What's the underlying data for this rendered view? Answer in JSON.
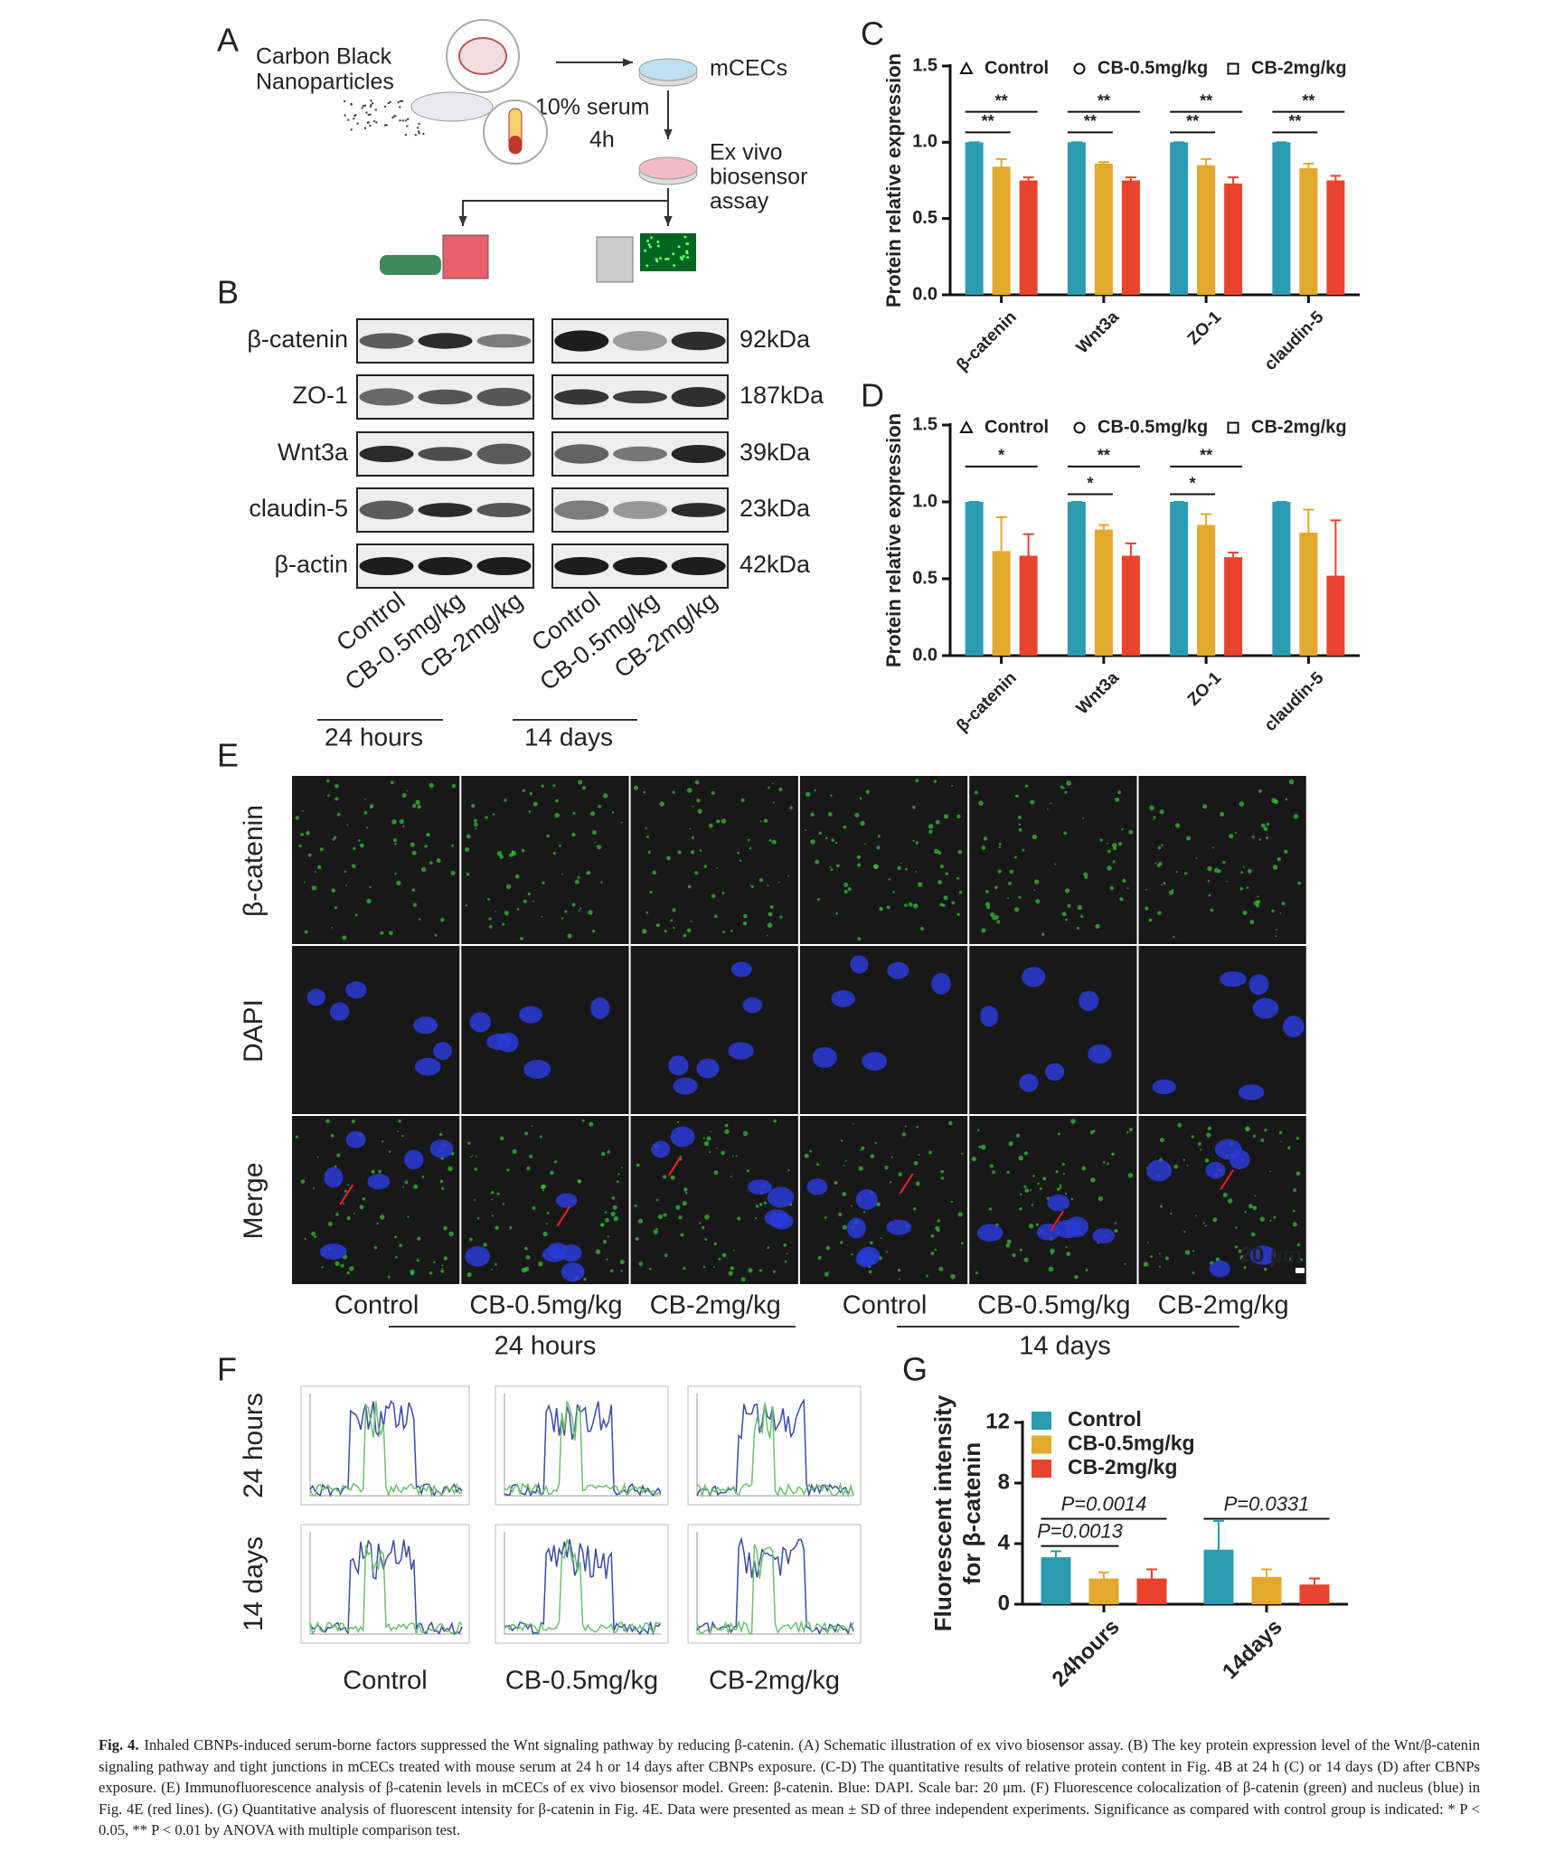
{
  "panel_a": {
    "label": "A",
    "source": [
      "Carbon Black",
      "Nanoparticles"
    ],
    "target": "mCECs",
    "treatment": [
      "10% serum",
      "4h"
    ],
    "assay": [
      "Ex vivo",
      "biosensor",
      "assay"
    ]
  },
  "panel_b": {
    "label": "B",
    "proteins": [
      "β-catenin",
      "ZO-1",
      "Wnt3a",
      "claudin-5",
      "β-actin"
    ],
    "weights": [
      "92kDa",
      "187kDa",
      "39kDa",
      "23kDa",
      "42kDa"
    ],
    "lanes": [
      [
        "Control",
        "CB-0.5mg/kg",
        "CB-2mg/kg"
      ],
      [
        "Control",
        "CB-0.5mg/kg",
        "CB-2mg/kg"
      ]
    ],
    "groups": [
      "24 hours",
      "14 days"
    ]
  },
  "panel_e": {
    "label": "E",
    "rows": [
      "β-catenin",
      "DAPI",
      "Merge"
    ],
    "columns": [
      "Control",
      "CB-0.5mg/kg",
      "CB-2mg/kg",
      "Control",
      "CB-0.5mg/kg",
      "CB-2mg/kg"
    ],
    "groups": [
      "24 hours",
      "14 days"
    ],
    "scale_bar": "20 µm"
  },
  "panel_f": {
    "label": "F",
    "rows": [
      "24 hours",
      "14 days"
    ],
    "columns": [
      "Control",
      "CB-0.5mg/kg",
      "CB-2mg/kg"
    ]
  },
  "chart_data": [
    {
      "type": "bar",
      "panel": "C",
      "ylabel": "Protein relative expression",
      "categories": [
        "β-catenin",
        "Wnt3a",
        "ZO-1",
        "claudin-5"
      ],
      "ylim": [
        0,
        1.5
      ],
      "yticks": [
        {
          "value": 0,
          "label": "0.0"
        },
        {
          "value": 0.5,
          "label": "0.5"
        },
        {
          "value": 1,
          "label": "1.0"
        },
        {
          "value": 1.5,
          "label": "1.5"
        }
      ],
      "grid": false,
      "legend": "top",
      "series": [
        {
          "name": "Control",
          "color": "#2a9bb0",
          "marker": "triangle",
          "values": [
            1,
            1,
            1,
            1
          ],
          "errors": [
            0,
            0,
            0,
            0
          ]
        },
        {
          "name": "CB-0.5mg/kg",
          "color": "#e3a82e",
          "marker": "circle",
          "values": [
            0.84,
            0.86,
            0.85,
            0.83
          ],
          "errors": [
            0.05,
            0.01,
            0.04,
            0.03
          ],
          "significance": [
            "**",
            "**",
            "**",
            "**"
          ]
        },
        {
          "name": "CB-2mg/kg",
          "color": "#e8432c",
          "marker": "square",
          "values": [
            0.75,
            0.75,
            0.73,
            0.75
          ],
          "errors": [
            0.02,
            0.02,
            0.04,
            0.03
          ],
          "significance": [
            "**",
            "**",
            "**",
            "**"
          ]
        }
      ]
    },
    {
      "type": "bar",
      "panel": "D",
      "ylabel": "Protein relative expression",
      "categories": [
        "β-catenin",
        "Wnt3a",
        "ZO-1",
        "claudin-5"
      ],
      "ylim": [
        0,
        1.5
      ],
      "yticks": [
        {
          "value": 0,
          "label": "0.0"
        },
        {
          "value": 0.5,
          "label": "0.5"
        },
        {
          "value": 1,
          "label": "1.0"
        },
        {
          "value": 1.5,
          "label": "1.5"
        }
      ],
      "grid": false,
      "legend": "top",
      "series": [
        {
          "name": "Control",
          "color": "#2a9bb0",
          "marker": "triangle",
          "values": [
            1,
            1,
            1,
            1
          ],
          "errors": [
            0,
            0,
            0,
            0
          ]
        },
        {
          "name": "CB-0.5mg/kg",
          "color": "#e3a82e",
          "marker": "circle",
          "values": [
            0.68,
            0.82,
            0.85,
            0.8
          ],
          "errors": [
            0.22,
            0.03,
            0.07,
            0.15
          ],
          "significance": [
            null,
            "*",
            "*",
            null
          ]
        },
        {
          "name": "CB-2mg/kg",
          "color": "#e8432c",
          "marker": "square",
          "values": [
            0.65,
            0.65,
            0.64,
            0.52
          ],
          "errors": [
            0.14,
            0.08,
            0.03,
            0.36
          ],
          "significance": [
            "*",
            "**",
            "**",
            null
          ]
        }
      ]
    },
    {
      "type": "bar",
      "panel": "G",
      "ylabel": [
        "Fluorescent intensity",
        "for β-catenin"
      ],
      "categories": [
        "24hours",
        "14days"
      ],
      "ylim": [
        0,
        12
      ],
      "yticks": [
        0,
        4,
        8,
        12
      ],
      "grid": false,
      "legend": "top-left",
      "series": [
        {
          "name": "Control",
          "color": "#2a9bb0",
          "values": [
            3.1,
            3.6
          ],
          "errors": [
            0.4,
            1.9
          ]
        },
        {
          "name": "CB-0.5mg/kg",
          "color": "#e3a82e",
          "values": [
            1.7,
            1.8
          ],
          "errors": [
            0.4,
            0.5
          ],
          "significance": [
            "P=0.0013",
            null
          ]
        },
        {
          "name": "CB-2mg/kg",
          "color": "#e8432c",
          "values": [
            1.7,
            1.3
          ],
          "errors": [
            0.6,
            0.4
          ],
          "significance": [
            "P=0.0014",
            "P=0.0331"
          ]
        }
      ]
    }
  ],
  "caption": {
    "label": "Fig. 4.",
    "text": "Inhaled CBNPs-induced serum-borne factors suppressed the Wnt signaling pathway by reducing β-catenin. (A) Schematic illustration of ex vivo biosensor assay. (B) The key protein expression level of the Wnt/β-catenin signaling pathway and tight junctions in mCECs treated with mouse serum at 24 h or 14 days after CBNPs exposure. (C-D) The quantitative results of relative protein content in Fig. 4B at 24 h (C) or 14 days (D) after CBNPs exposure. (E) Immunofluorescence analysis of β-catenin levels in mCECs of ex vivo biosensor model. Green: β-catenin. Blue: DAPI. Scale bar: 20 μm. (F) Fluorescence colocalization of β-catenin (green) and nucleus (blue) in Fig. 4E (red lines). (G) Quantitative analysis of fluorescent intensity for β-catenin in Fig. 4E. Data were presented as mean ± SD of three independent experiments. Significance as compared with control group is indicated: * P < 0.05, ** P < 0.01 by ANOVA with multiple comparison test."
  }
}
